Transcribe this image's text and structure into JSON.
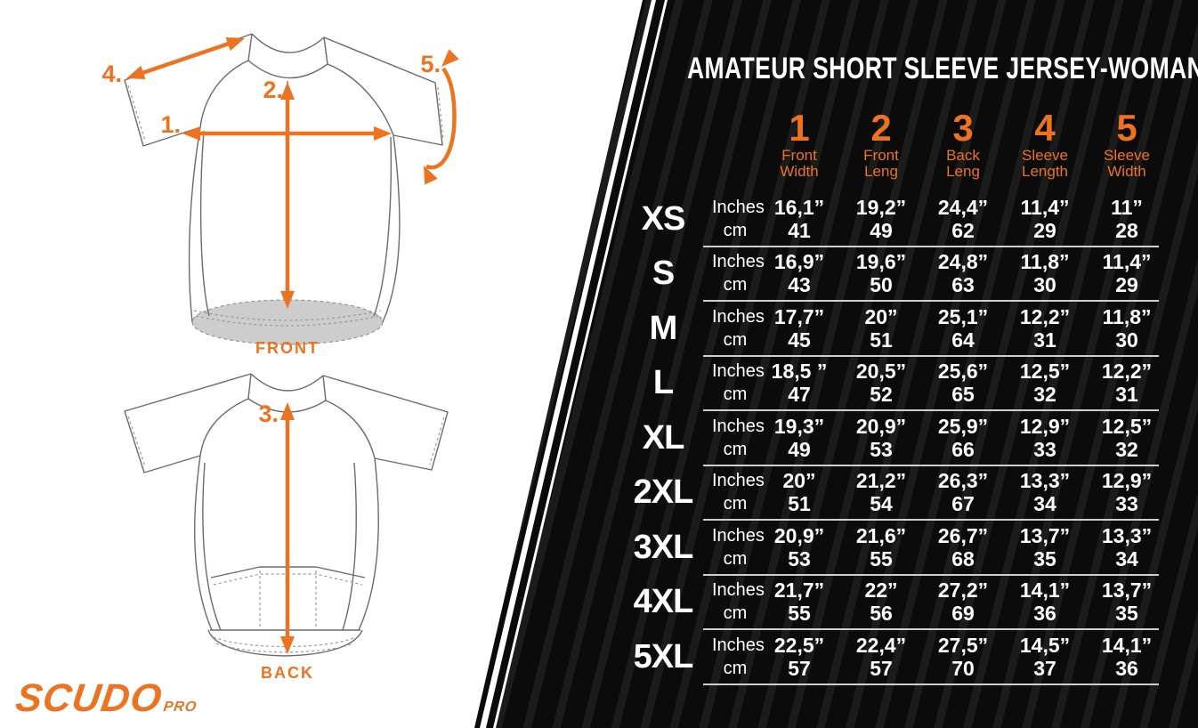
{
  "title": "AMATEUR SHORT SLEEVE JERSEY-WOMAN",
  "logo": {
    "brand": "SCUDO",
    "suffix": "PRO"
  },
  "colors": {
    "accent": "#EE7320",
    "panel_black": "#0B0B0B",
    "separator": "#CFCFCF",
    "hem_gray": "#CDCDCD"
  },
  "front_diagram": {
    "label": "FRONT",
    "arrows": {
      "front_width": "1.",
      "front_length": "2.",
      "sleeve_length": "4.",
      "sleeve_width": "5."
    }
  },
  "back_diagram": {
    "label": "BACK",
    "arrows": {
      "back_length": "3."
    }
  },
  "table": {
    "unit_labels": [
      "Inches",
      "cm"
    ],
    "columns": [
      {
        "num": "1",
        "label": [
          "Front",
          "Width"
        ]
      },
      {
        "num": "2",
        "label": [
          "Front",
          "Leng"
        ]
      },
      {
        "num": "3",
        "label": [
          "Back",
          "Leng"
        ]
      },
      {
        "num": "4",
        "label": [
          "Sleeve",
          "Length"
        ]
      },
      {
        "num": "5",
        "label": [
          "Sleeve",
          "Width"
        ]
      }
    ],
    "rows": [
      {
        "size": "XS",
        "inches": [
          "16,1”",
          "19,2”",
          "24,4”",
          "11,4”",
          "11”"
        ],
        "cm": [
          "41",
          "49",
          "62",
          "29",
          "28"
        ]
      },
      {
        "size": "S",
        "inches": [
          "16,9”",
          "19,6”",
          "24,8”",
          "11,8”",
          "11,4”"
        ],
        "cm": [
          "43",
          "50",
          "63",
          "30",
          "29"
        ]
      },
      {
        "size": "M",
        "inches": [
          "17,7”",
          "20”",
          "25,1”",
          "12,2”",
          "11,8”"
        ],
        "cm": [
          "45",
          "51",
          "64",
          "31",
          "30"
        ]
      },
      {
        "size": "L",
        "inches": [
          "18,5 ”",
          "20,5”",
          "25,6”",
          "12,5”",
          "12,2”"
        ],
        "cm": [
          "47",
          "52",
          "65",
          "32",
          "31"
        ]
      },
      {
        "size": "XL",
        "inches": [
          "19,3”",
          "20,9”",
          "25,9”",
          "12,9”",
          "12,5”"
        ],
        "cm": [
          "49",
          "53",
          "66",
          "33",
          "32"
        ]
      },
      {
        "size": "2XL",
        "inches": [
          "20”",
          "21,2”",
          "26,3”",
          "13,3”",
          "12,9”"
        ],
        "cm": [
          "51",
          "54",
          "67",
          "34",
          "33"
        ]
      },
      {
        "size": "3XL",
        "inches": [
          "20,9”",
          "21,6”",
          "26,7”",
          "13,7”",
          "13,3”"
        ],
        "cm": [
          "53",
          "55",
          "68",
          "35",
          "34"
        ]
      },
      {
        "size": "4XL",
        "inches": [
          "21,7”",
          "22”",
          "27,2”",
          "14,1”",
          "13,7”"
        ],
        "cm": [
          "55",
          "56",
          "69",
          "36",
          "35"
        ]
      },
      {
        "size": "5XL",
        "inches": [
          "22,5”",
          "22,4”",
          "27,5”",
          "14,5”",
          "14,1”"
        ],
        "cm": [
          "57",
          "57",
          "70",
          "37",
          "36"
        ]
      }
    ]
  }
}
